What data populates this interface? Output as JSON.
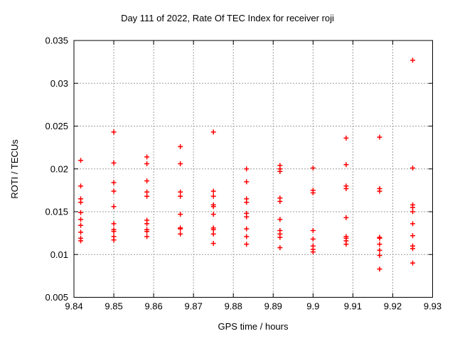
{
  "colors": {
    "marker": "#ff0000",
    "grid": "#9c9c9c",
    "axis": "#000000",
    "text": "#000000",
    "background": "#ffffff"
  },
  "chart_data": {
    "type": "scatter",
    "title": "Day 111 of 2022, Rate Of TEC Index for receiver roji",
    "xlabel": "GPS time / hours",
    "ylabel": "ROTI / TECUs",
    "xlim": [
      9.84,
      9.93
    ],
    "ylim": [
      0.005,
      0.035
    ],
    "xtick_labels": [
      "9.84",
      "9.85",
      "9.86",
      "9.87",
      "9.88",
      "9.89",
      "9.9",
      "9.91",
      "9.92",
      "9.93"
    ],
    "ytick_labels": [
      "0.005",
      "0.01",
      "0.015",
      "0.02",
      "0.025",
      "0.03",
      "0.035"
    ],
    "grid": "dashed",
    "legend_position": "none",
    "marker": {
      "shape": "plus",
      "color": "#ff0000",
      "size": 7
    },
    "series": [
      {
        "name": "ROTI",
        "groups": [
          {
            "x": 9.8417,
            "y": [
              0.021,
              0.018,
              0.0165,
              0.0161,
              0.0149,
              0.0141,
              0.0134,
              0.0126,
              0.0119,
              0.0116
            ]
          },
          {
            "x": 9.85,
            "y": [
              0.0243,
              0.0207,
              0.0184,
              0.0174,
              0.0156,
              0.0136,
              0.0129,
              0.0127,
              0.0121,
              0.0117
            ]
          },
          {
            "x": 9.8583,
            "y": [
              0.0214,
              0.0206,
              0.0186,
              0.0173,
              0.0168,
              0.014,
              0.0136,
              0.0129,
              0.0127,
              0.0121
            ]
          },
          {
            "x": 9.8667,
            "y": [
              0.0226,
              0.0206,
              0.0173,
              0.0168,
              0.0147,
              0.0131,
              0.013,
              0.0124
            ]
          },
          {
            "x": 9.875,
            "y": [
              0.0243,
              0.0174,
              0.0168,
              0.0158,
              0.0156,
              0.0147,
              0.0131,
              0.0129,
              0.0124,
              0.0113
            ]
          },
          {
            "x": 9.8833,
            "y": [
              0.02,
              0.0185,
              0.0165,
              0.0161,
              0.0148,
              0.0144,
              0.013,
              0.0121,
              0.0112
            ]
          },
          {
            "x": 9.8917,
            "y": [
              0.0204,
              0.02,
              0.0197,
              0.0166,
              0.0162,
              0.0141,
              0.0128,
              0.0124,
              0.012,
              0.0108
            ]
          },
          {
            "x": 9.9,
            "y": [
              0.0201,
              0.0175,
              0.0172,
              0.0128,
              0.0118,
              0.011,
              0.0106,
              0.0103
            ]
          },
          {
            "x": 9.9083,
            "y": [
              0.0236,
              0.0205,
              0.018,
              0.0177,
              0.0143,
              0.0121,
              0.0119,
              0.0116,
              0.0112
            ]
          },
          {
            "x": 9.9167,
            "y": [
              0.0237,
              0.0177,
              0.0174,
              0.012,
              0.0119,
              0.0112,
              0.0105,
              0.0099,
              0.0083
            ]
          },
          {
            "x": 9.925,
            "y": [
              0.0327,
              0.0201,
              0.0158,
              0.0155,
              0.015,
              0.0136,
              0.0122,
              0.011,
              0.0107,
              0.009
            ]
          }
        ]
      }
    ]
  }
}
